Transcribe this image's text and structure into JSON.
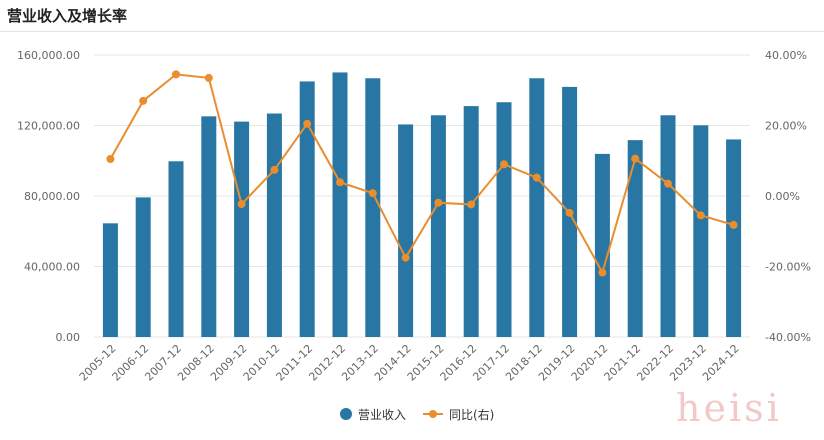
{
  "title": "营业收入及增长率",
  "watermark": "heisi",
  "colors": {
    "bar": "#2876a3",
    "line": "#e98d2f",
    "grid": "#e6e6e6",
    "axis_text": "#666666"
  },
  "chart_data": {
    "type": "bar",
    "categories": [
      "2005-12",
      "2006-12",
      "2007-12",
      "2008-12",
      "2009-12",
      "2010-12",
      "2011-12",
      "2012-12",
      "2013-12",
      "2014-12",
      "2015-12",
      "2016-12",
      "2017-12",
      "2018-12",
      "2019-12",
      "2020-12",
      "2021-12",
      "2022-12",
      "2023-12",
      "2024-12"
    ],
    "series": [
      {
        "name": "营业收入",
        "type": "bar",
        "axis": "left",
        "values": [
          64500,
          79200,
          99700,
          125200,
          122200,
          126800,
          145000,
          150100,
          146800,
          120600,
          125800,
          131000,
          133200,
          146800,
          141900,
          103900,
          111700,
          125800,
          120100,
          112100
        ]
      },
      {
        "name": "同比(右)",
        "type": "line",
        "axis": "right",
        "values": [
          10.5,
          27.0,
          34.5,
          33.5,
          -2.3,
          7.4,
          20.5,
          3.9,
          0.8,
          -17.5,
          -1.9,
          -2.4,
          9.0,
          5.2,
          -4.8,
          -21.7,
          10.6,
          3.5,
          -5.5,
          -8.2
        ]
      }
    ],
    "y_left": {
      "min": 0,
      "max": 160000,
      "ticks": [
        "0.00",
        "40,000.00",
        "80,000.00",
        "120,000.00",
        "160,000.00"
      ]
    },
    "y_right": {
      "min": -40,
      "max": 40,
      "ticks": [
        "-40.00%",
        "-20.00%",
        "0.00%",
        "20.00%",
        "40.00%"
      ]
    },
    "grid": true,
    "legend_position": "bottom"
  }
}
